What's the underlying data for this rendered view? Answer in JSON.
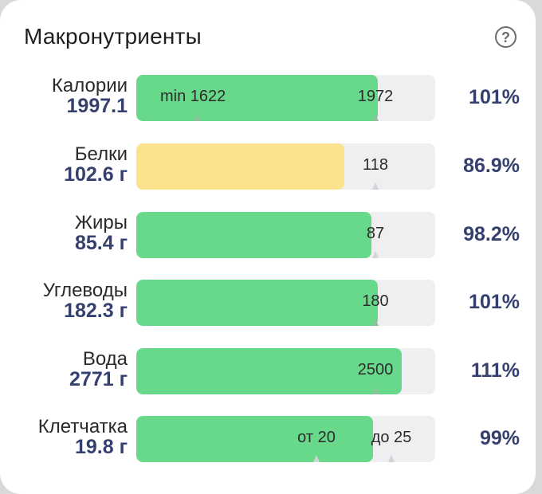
{
  "card": {
    "title": "Макронутриенты",
    "help_icon": "question-circle-icon"
  },
  "colors": {
    "ok": "#68d98a",
    "low": "#fbe28d",
    "track": "#efeff2",
    "value": "#35406f"
  },
  "rows": [
    {
      "name": "Калории",
      "amount": "1997.1",
      "percent": "101%",
      "progress": 101,
      "color": "green",
      "labels": [
        {
          "text": "min 1622",
          "value": 1622
        },
        {
          "text": "1972",
          "value": 1972
        }
      ]
    },
    {
      "name": "Белки",
      "amount": "102.6 г",
      "percent": "86.9%",
      "progress": 86.9,
      "color": "yellow",
      "labels": [
        {
          "text": "118",
          "value": 118
        }
      ]
    },
    {
      "name": "Жиры",
      "amount": "85.4 г",
      "percent": "98.2%",
      "progress": 98.2,
      "color": "green",
      "labels": [
        {
          "text": "87",
          "value": 87
        }
      ]
    },
    {
      "name": "Углеводы",
      "amount": "182.3 г",
      "percent": "101%",
      "progress": 101,
      "color": "green",
      "labels": [
        {
          "text": "180",
          "value": 180
        }
      ]
    },
    {
      "name": "Вода",
      "amount": "2771 г",
      "percent": "111%",
      "progress": 111,
      "color": "green",
      "labels": [
        {
          "text": "2500",
          "value": 2500
        }
      ]
    },
    {
      "name": "Клетчатка",
      "amount": "19.8 г",
      "percent": "99%",
      "progress": 99,
      "color": "green",
      "labels": [
        {
          "text": "от 20",
          "value": 20
        },
        {
          "text": "до 25",
          "value": 25
        }
      ]
    }
  ]
}
